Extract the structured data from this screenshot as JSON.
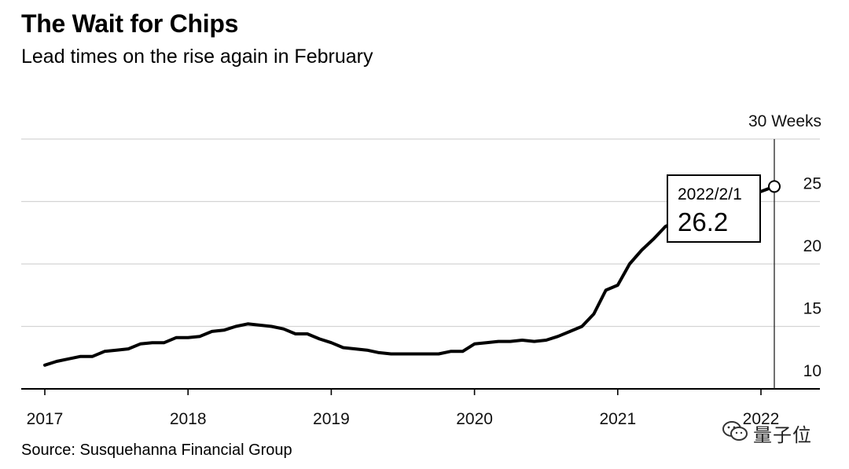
{
  "header": {
    "title": "The Wait for Chips",
    "subtitle": "Lead times on the rise again in February"
  },
  "footer": {
    "source": "Susquehanna Financial Group",
    "source_prefix": "Source: "
  },
  "watermark": {
    "text": "量子位",
    "icon": "wechat-icon"
  },
  "tooltip": {
    "date": "2022/2/1",
    "value": "26.2"
  },
  "chart_data": {
    "type": "line",
    "title": "The Wait for Chips",
    "subtitle": "Lead times on the rise again in February",
    "ylabel": "",
    "y_unit": "Weeks",
    "ylim": [
      10,
      30
    ],
    "yticks": [
      10,
      15,
      20,
      25,
      30
    ],
    "ytick_labels": [
      "10",
      "15",
      "20",
      "25",
      "30 Weeks"
    ],
    "xlim": [
      2017,
      2022.1
    ],
    "xticks": [
      2017,
      2018,
      2019,
      2020,
      2021,
      2022
    ],
    "xtick_labels": [
      "2017",
      "2018",
      "2019",
      "2020",
      "2021",
      "2022"
    ],
    "grid": "horizontal",
    "line_color": "#000000",
    "series": [
      {
        "x": [
          2017.0,
          2017.083,
          2017.167,
          2017.25,
          2017.333,
          2017.417,
          2017.5,
          2017.583,
          2017.667,
          2017.75,
          2017.833,
          2017.917,
          2018.0,
          2018.083,
          2018.167,
          2018.25,
          2018.333,
          2018.417,
          2018.5,
          2018.583,
          2018.667,
          2018.75,
          2018.833,
          2018.917,
          2019.0,
          2019.083,
          2019.167,
          2019.25,
          2019.333,
          2019.417,
          2019.5,
          2019.583,
          2019.667,
          2019.75,
          2019.833,
          2019.917,
          2020.0,
          2020.083,
          2020.167,
          2020.25,
          2020.333,
          2020.417,
          2020.5,
          2020.583,
          2020.667,
          2020.75,
          2020.833,
          2020.917,
          2021.0,
          2021.083,
          2021.167,
          2021.25,
          2021.333,
          2021.417,
          2021.5,
          2021.583,
          2021.667,
          2021.75,
          2021.833,
          2021.917,
          2022.0,
          2022.083
        ],
        "y": [
          11.9,
          12.2,
          12.4,
          12.6,
          12.6,
          13.0,
          13.1,
          13.2,
          13.6,
          13.7,
          13.7,
          14.1,
          14.1,
          14.2,
          14.6,
          14.7,
          15.0,
          15.2,
          15.1,
          15.0,
          14.8,
          14.4,
          14.4,
          14.0,
          13.7,
          13.3,
          13.2,
          13.1,
          12.9,
          12.8,
          12.8,
          12.8,
          12.8,
          12.8,
          13.0,
          13.0,
          13.6,
          13.7,
          13.8,
          13.8,
          13.9,
          13.8,
          13.9,
          14.2,
          14.6,
          15.0,
          16.0,
          17.9,
          18.3,
          20.0,
          21.1,
          22.0,
          23.0,
          23.5,
          24.2,
          24.6,
          24.9,
          25.1,
          25.4,
          25.6,
          25.8,
          26.2
        ]
      }
    ],
    "annotation": {
      "x": 2022.083,
      "y": 26.2,
      "date_label": "2022/2/1",
      "value_label": "26.2"
    }
  }
}
